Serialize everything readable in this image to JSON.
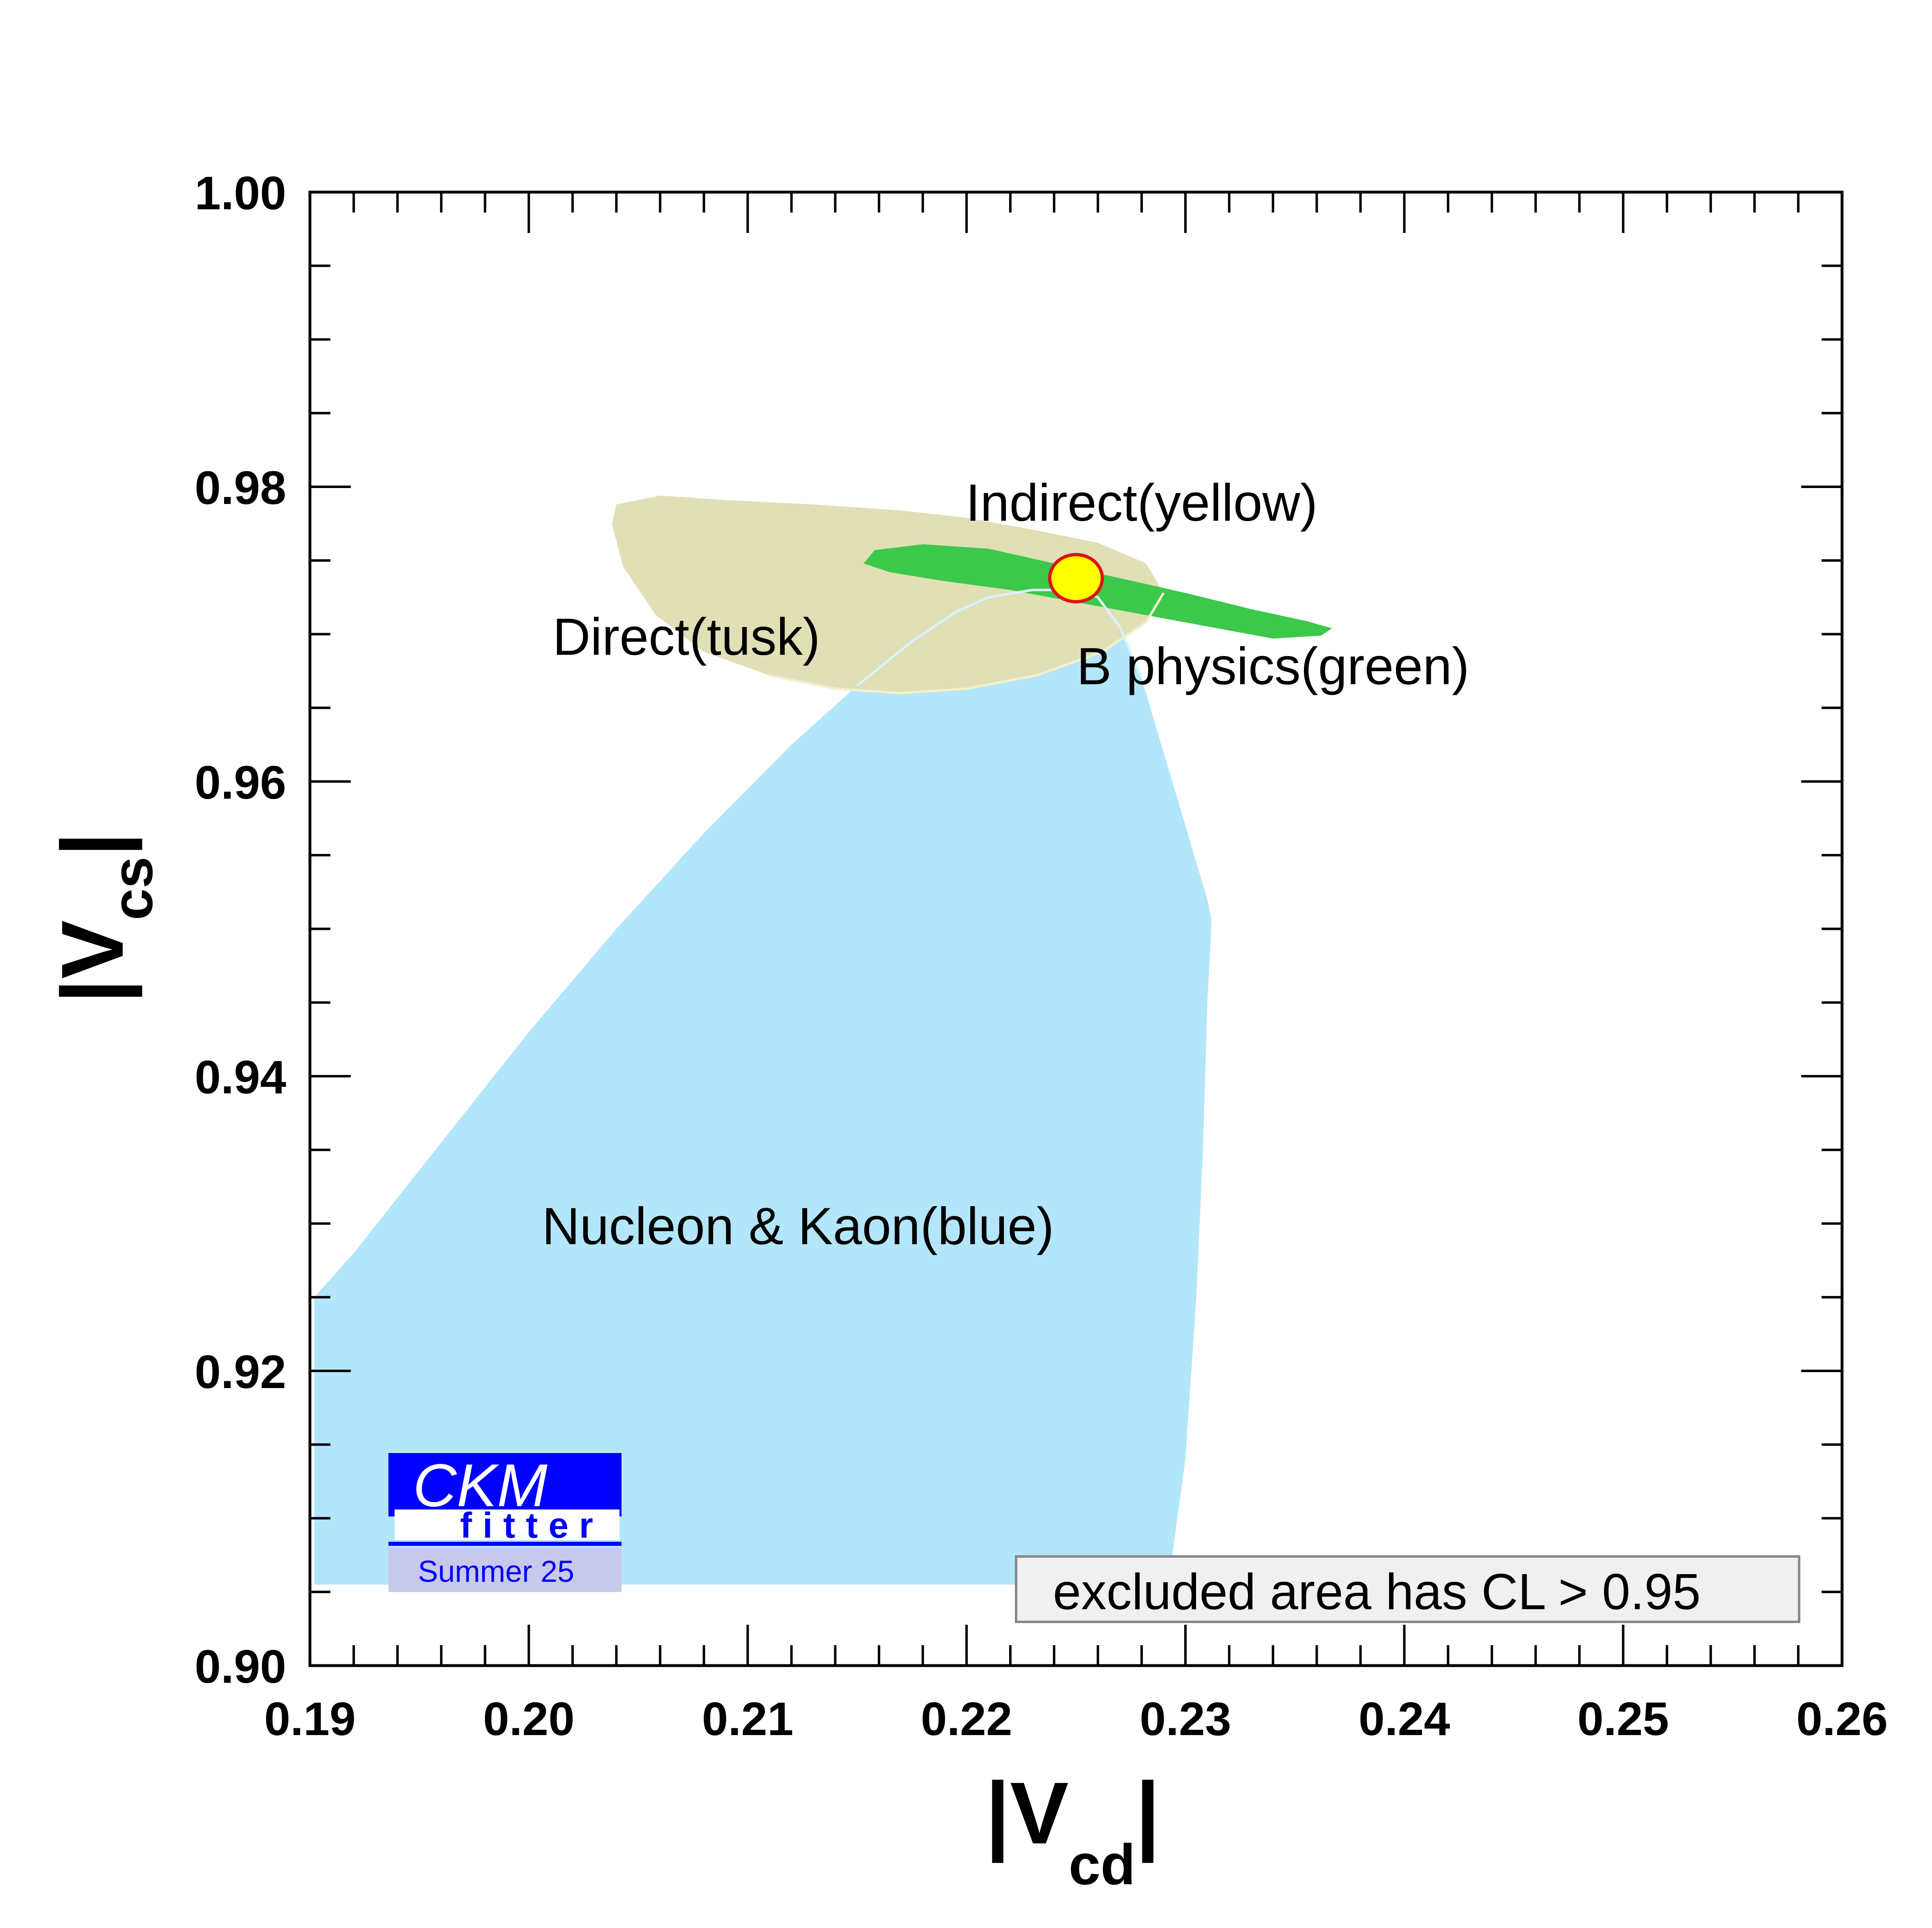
{
  "chart_data": {
    "type": "area",
    "xlabel": {
      "main": "|V",
      "sub": "cd",
      "end": "|"
    },
    "ylabel": {
      "main": "|V",
      "sub": "cs",
      "end": "|"
    },
    "xlim": [
      0.19,
      0.26
    ],
    "ylim": [
      0.9,
      1.0
    ],
    "x_ticks": [
      "0.19",
      "0.20",
      "0.21",
      "0.22",
      "0.23",
      "0.24",
      "0.25",
      "0.26"
    ],
    "y_ticks": [
      "0.90",
      "0.92",
      "0.94",
      "0.96",
      "0.98",
      "1.00"
    ],
    "grid": false,
    "colors": {
      "blue": "#b3e6fa",
      "tusk": "#e0dfb6",
      "green": "#3cc84a",
      "yellow": "#ffff00",
      "red": "#e01010",
      "logo_blue": "#0000ff",
      "logo_band": "#c8c8ec"
    },
    "regions": [
      {
        "name": "Nucleon & Kaon(blue)",
        "color": "#b3e6fa",
        "points": [
          [
            0.1902,
            0.9055
          ],
          [
            0.223,
            0.9055
          ],
          [
            0.2294,
            0.9075
          ],
          [
            0.23,
            0.914
          ],
          [
            0.2305,
            0.925
          ],
          [
            0.2308,
            0.935
          ],
          [
            0.231,
            0.945
          ],
          [
            0.2312,
            0.9505
          ],
          [
            0.231,
            0.952
          ],
          [
            0.23,
            0.957
          ],
          [
            0.229,
            0.962
          ],
          [
            0.228,
            0.967
          ],
          [
            0.227,
            0.9705
          ],
          [
            0.226,
            0.9725
          ],
          [
            0.225,
            0.973
          ],
          [
            0.223,
            0.973
          ],
          [
            0.221,
            0.9725
          ],
          [
            0.2195,
            0.9715
          ],
          [
            0.2175,
            0.9695
          ],
          [
            0.215,
            0.9665
          ],
          [
            0.212,
            0.9625
          ],
          [
            0.208,
            0.9565
          ],
          [
            0.204,
            0.95
          ],
          [
            0.2,
            0.943
          ],
          [
            0.196,
            0.9355
          ],
          [
            0.192,
            0.928
          ],
          [
            0.1902,
            0.925
          ]
        ]
      },
      {
        "name": "Direct(tusk)",
        "color": "#e0dfb6",
        "points": [
          [
            0.204,
            0.9788
          ],
          [
            0.206,
            0.9794
          ],
          [
            0.209,
            0.9791
          ],
          [
            0.213,
            0.9788
          ],
          [
            0.217,
            0.9784
          ],
          [
            0.22,
            0.9779
          ],
          [
            0.223,
            0.9771
          ],
          [
            0.226,
            0.9762
          ],
          [
            0.2282,
            0.9748
          ],
          [
            0.229,
            0.9728
          ],
          [
            0.2282,
            0.9708
          ],
          [
            0.2262,
            0.9688
          ],
          [
            0.2232,
            0.9672
          ],
          [
            0.22,
            0.9663
          ],
          [
            0.217,
            0.966
          ],
          [
            0.214,
            0.9663
          ],
          [
            0.211,
            0.9672
          ],
          [
            0.208,
            0.9688
          ],
          [
            0.2058,
            0.9713
          ],
          [
            0.2043,
            0.9746
          ],
          [
            0.2038,
            0.9775
          ]
        ]
      },
      {
        "name": "B physics(green)",
        "color": "#3cc84a",
        "points": [
          [
            0.2158,
            0.9757
          ],
          [
            0.218,
            0.9761
          ],
          [
            0.221,
            0.9758
          ],
          [
            0.224,
            0.9748
          ],
          [
            0.227,
            0.9738
          ],
          [
            0.23,
            0.9728
          ],
          [
            0.233,
            0.9717
          ],
          [
            0.2355,
            0.9709
          ],
          [
            0.2367,
            0.9704
          ],
          [
            0.2362,
            0.9699
          ],
          [
            0.234,
            0.9697
          ],
          [
            0.23,
            0.9708
          ],
          [
            0.226,
            0.9719
          ],
          [
            0.222,
            0.973
          ],
          [
            0.219,
            0.9736
          ],
          [
            0.2165,
            0.9742
          ],
          [
            0.2153,
            0.9748
          ]
        ]
      },
      {
        "name": "Indirect(yellow)",
        "color": "#ffff00",
        "center": [
          0.225,
          0.9738
        ],
        "radius": [
          0.0012,
          0.0016
        ]
      }
    ],
    "annotations": [
      {
        "text": "Indirect(yellow)",
        "x": 0.228,
        "y": 0.9777
      },
      {
        "text": "Direct(tusk)",
        "x": 0.2072,
        "y": 0.9686
      },
      {
        "text": "B physics(green)",
        "x": 0.234,
        "y": 0.9666
      },
      {
        "text": "Nucleon & Kaon(blue)",
        "x": 0.2123,
        "y": 0.9286
      }
    ],
    "legend_box": {
      "text": "excluded area has CL > 0.95",
      "placement": "bottom-right"
    }
  },
  "logo": {
    "line1": "CKM",
    "line2": "fitter",
    "line3": "Summer 25"
  }
}
